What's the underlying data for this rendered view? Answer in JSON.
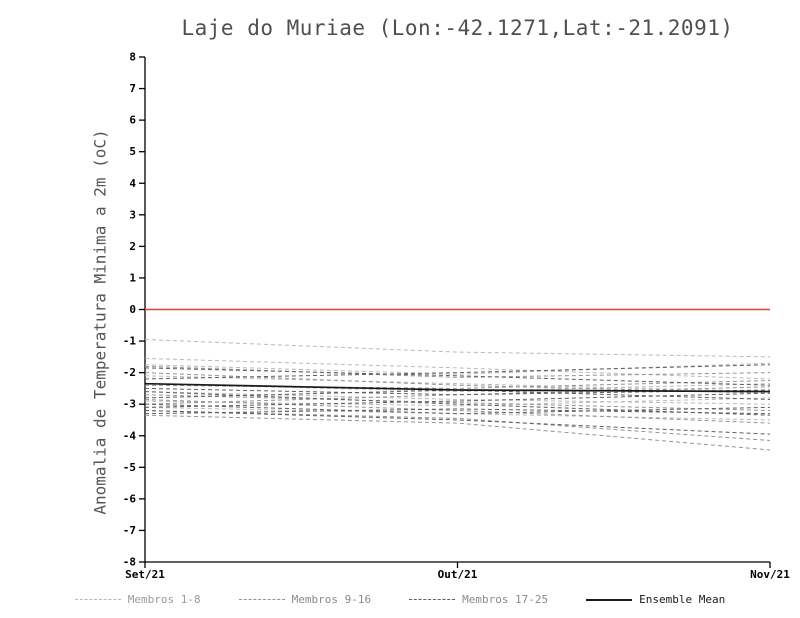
{
  "chart_data": {
    "type": "line",
    "title": "Laje do Muriae (Lon:-42.1271,Lat:-21.2091)",
    "ylabel": "Anomalia de Temperatura Minima a 2m (oC)",
    "x_labels": [
      "Set/21",
      "Out/21",
      "Nov/21"
    ],
    "x": [
      0,
      1,
      2
    ],
    "ylim": [
      -8,
      8
    ],
    "ytick_step": 1,
    "grid": false,
    "legend_position": "bottom",
    "zero_line": {
      "y": 0,
      "color": "#f04030"
    },
    "groups": [
      {
        "name": "Membros 1-8",
        "color": "#b9b9b9",
        "series": [
          [
            -0.95,
            -1.35,
            -1.5
          ],
          [
            -1.55,
            -1.85,
            -2.2
          ],
          [
            -1.75,
            -2.05,
            -1.7
          ],
          [
            -2.1,
            -2.35,
            -2.6
          ],
          [
            -2.35,
            -2.6,
            -2.35
          ],
          [
            -2.6,
            -2.85,
            -3.0
          ],
          [
            -2.9,
            -3.05,
            -2.8
          ],
          [
            -3.1,
            -3.3,
            -3.5
          ]
        ]
      },
      {
        "name": "Membros 9-16",
        "color": "#949494",
        "series": [
          [
            -1.8,
            -2.15,
            -2.0
          ],
          [
            -2.0,
            -2.4,
            -2.65
          ],
          [
            -2.4,
            -2.5,
            -2.25
          ],
          [
            -2.7,
            -2.95,
            -3.2
          ],
          [
            -2.85,
            -3.2,
            -3.6
          ],
          [
            -3.0,
            -2.7,
            -2.45
          ],
          [
            -3.2,
            -3.45,
            -4.15
          ],
          [
            -3.35,
            -3.6,
            -4.45
          ]
        ]
      },
      {
        "name": "Membros 17-25",
        "color": "#5f5f5f",
        "series": [
          [
            -1.85,
            -2.1,
            -2.4
          ],
          [
            -2.2,
            -2.0,
            -1.75
          ],
          [
            -2.5,
            -2.7,
            -2.55
          ],
          [
            -2.6,
            -3.0,
            -3.35
          ],
          [
            -2.8,
            -2.55,
            -2.85
          ],
          [
            -3.0,
            -3.3,
            -3.1
          ],
          [
            -3.1,
            -2.9,
            -2.65
          ],
          [
            -3.2,
            -3.5,
            -3.95
          ],
          [
            -3.3,
            -3.15,
            -3.3
          ]
        ]
      }
    ],
    "mean": {
      "name": "Ensemble Mean",
      "color": "#1a1a1a",
      "values": [
        -2.35,
        -2.55,
        -2.6
      ]
    }
  },
  "legend": [
    {
      "label": "Membros 1-8",
      "color": "#b9b9b9",
      "text_color": "#9a9a9a",
      "style": "dashed"
    },
    {
      "label": "Membros 9-16",
      "color": "#949494",
      "text_color": "#8a8a8a",
      "style": "dashed"
    },
    {
      "label": "Membros 17-25",
      "color": "#5f5f5f",
      "text_color": "#8a8a8a",
      "style": "dashed"
    },
    {
      "label": "Ensemble Mean",
      "color": "#1a1a1a",
      "text_color": "#1a1a1a",
      "style": "solid"
    }
  ]
}
